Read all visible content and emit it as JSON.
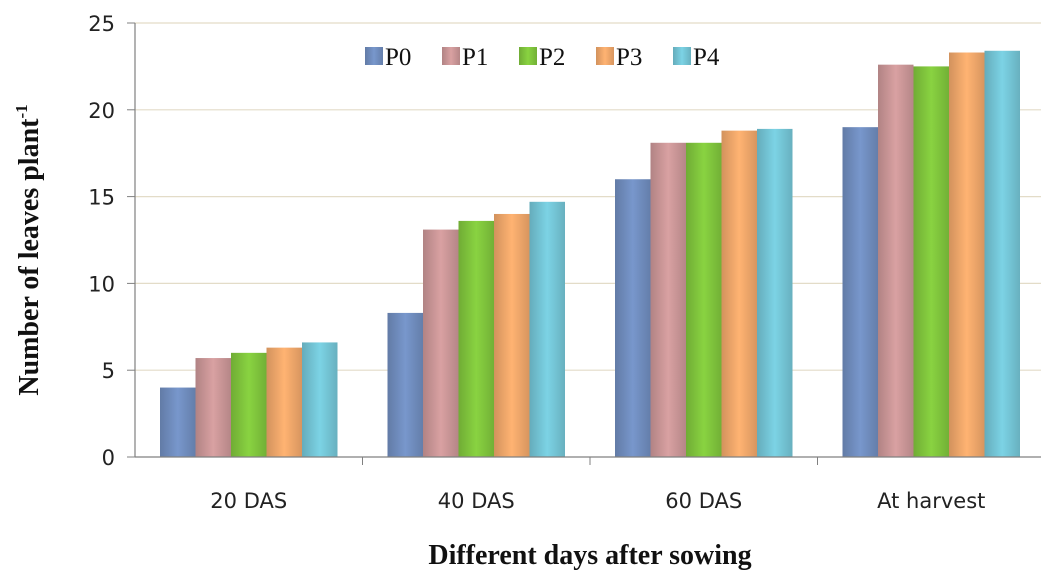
{
  "chart_data": {
    "type": "bar",
    "categories": [
      "20 DAS",
      "40 DAS",
      "60 DAS",
      "At harvest"
    ],
    "series": [
      {
        "name": "P0",
        "values": [
          4.0,
          8.3,
          16.0,
          19.0
        ],
        "color": "#6f8cbd"
      },
      {
        "name": "P1",
        "values": [
          5.7,
          13.1,
          18.1,
          22.6
        ],
        "color": "#c99596"
      },
      {
        "name": "P2",
        "values": [
          6.0,
          13.6,
          18.1,
          22.5
        ],
        "color": "#7fc33c"
      },
      {
        "name": "P3",
        "values": [
          6.3,
          14.0,
          18.8,
          23.3
        ],
        "color": "#efa66a"
      },
      {
        "name": "P4",
        "values": [
          6.6,
          14.7,
          18.9,
          23.4
        ],
        "color": "#73c3d4"
      }
    ],
    "xlabel": "Different days after sowing",
    "ylabel": "Number of leaves plant",
    "ylabel_superscript": "-1",
    "ylim": [
      0,
      25
    ],
    "yticks": [
      "0",
      "5",
      "10",
      "15",
      "20",
      "25"
    ],
    "grid": true,
    "legend_position": "top-center"
  }
}
